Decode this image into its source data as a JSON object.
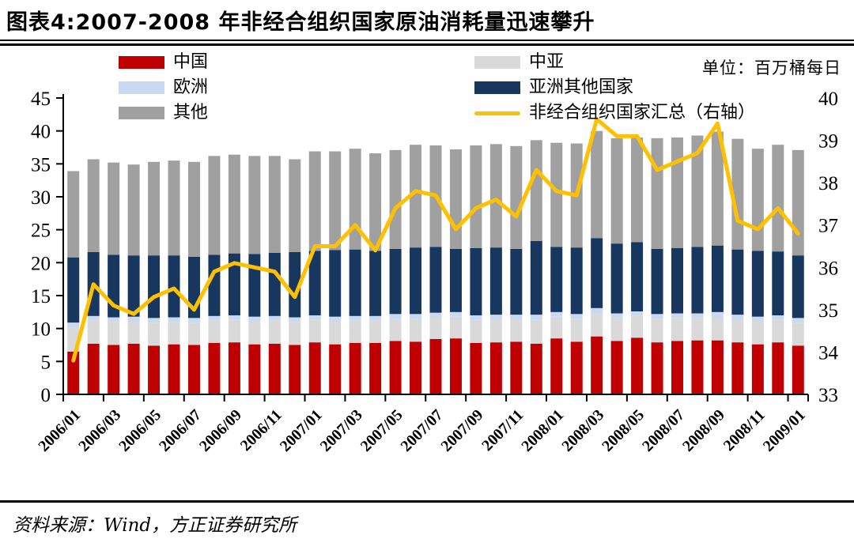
{
  "header": {
    "title": "图表4:2007-2008 年非经合组织国家原油消耗量迅速攀升"
  },
  "unit_label": "单位：百万桶每日",
  "footer": {
    "source": "资料来源：Wind，方正证券研究所"
  },
  "legend": {
    "items": [
      {
        "label": "中国",
        "color": "#C00000",
        "type": "bar"
      },
      {
        "label": "欧洲",
        "color": "#C9DAF0",
        "type": "bar"
      },
      {
        "label": "其他",
        "color": "#A0A0A0",
        "type": "bar"
      },
      {
        "label": "中亚",
        "color": "#D9D9D9",
        "type": "bar"
      },
      {
        "label": "亚洲其他国家",
        "color": "#17375E",
        "type": "bar"
      },
      {
        "label": "非经合组织国家汇总（右轴）",
        "color": "#FFC000",
        "type": "line"
      }
    ]
  },
  "chart_data": {
    "type": "bar",
    "subtype": "stacked-bars-with-line-overlay",
    "categories": [
      "2006/01",
      "2006/02",
      "2006/03",
      "2006/04",
      "2006/05",
      "2006/06",
      "2006/07",
      "2006/08",
      "2006/09",
      "2006/10",
      "2006/11",
      "2006/12",
      "2007/01",
      "2007/02",
      "2007/03",
      "2007/04",
      "2007/05",
      "2007/06",
      "2007/07",
      "2007/08",
      "2007/09",
      "2007/10",
      "2007/11",
      "2007/12",
      "2008/01",
      "2008/02",
      "2008/03",
      "2008/04",
      "2008/05",
      "2008/06",
      "2008/07",
      "2008/08",
      "2008/09",
      "2008/10",
      "2008/11",
      "2008/12",
      "2009/01"
    ],
    "x_tick_labels": [
      "2006/01",
      "2006/03",
      "2006/05",
      "2006/07",
      "2006/09",
      "2006/11",
      "2007/01",
      "2007/03",
      "2007/05",
      "2007/07",
      "2007/09",
      "2007/11",
      "2008/01",
      "2008/03",
      "2008/05",
      "2008/07",
      "2008/09",
      "2008/11",
      "2009/01"
    ],
    "series": [
      {
        "name": "中国",
        "color": "#C00000",
        "values": [
          6.5,
          7.7,
          7.5,
          7.7,
          7.4,
          7.6,
          7.5,
          7.8,
          7.9,
          7.6,
          7.7,
          7.5,
          7.9,
          7.6,
          7.8,
          7.8,
          8.1,
          8.0,
          8.4,
          8.5,
          7.8,
          7.9,
          8.0,
          7.7,
          8.5,
          8.0,
          8.8,
          8.1,
          8.6,
          7.9,
          8.1,
          8.2,
          8.2,
          7.9,
          7.6,
          7.9,
          7.4
        ]
      },
      {
        "name": "中亚",
        "color": "#D9D9D9",
        "values": [
          3.6,
          3.5,
          3.5,
          3.4,
          3.5,
          3.4,
          3.4,
          3.4,
          3.4,
          3.5,
          3.5,
          3.5,
          3.4,
          3.5,
          3.4,
          3.4,
          3.4,
          3.5,
          3.3,
          3.3,
          3.5,
          3.5,
          3.4,
          3.6,
          3.3,
          3.5,
          3.4,
          3.5,
          3.3,
          3.6,
          3.5,
          3.4,
          3.5,
          3.5,
          3.5,
          3.4,
          3.5
        ]
      },
      {
        "name": "欧洲",
        "color": "#C9DAF0",
        "values": [
          0.8,
          0.7,
          0.7,
          0.7,
          0.7,
          0.7,
          0.7,
          0.7,
          0.7,
          0.7,
          0.7,
          0.7,
          0.7,
          0.7,
          0.7,
          0.7,
          0.7,
          0.7,
          0.7,
          0.7,
          0.7,
          0.7,
          0.7,
          0.8,
          0.7,
          0.7,
          0.9,
          0.7,
          0.7,
          0.7,
          0.7,
          0.7,
          0.8,
          0.7,
          0.7,
          0.7,
          0.7
        ]
      },
      {
        "name": "亚洲其他国家",
        "color": "#17375E",
        "values": [
          9.9,
          9.7,
          9.5,
          9.3,
          9.5,
          9.4,
          9.3,
          9.3,
          9.4,
          9.5,
          9.6,
          9.9,
          9.8,
          10.1,
          10.1,
          9.9,
          9.9,
          10.1,
          10.0,
          9.6,
          10.2,
          10.2,
          10.0,
          11.2,
          9.9,
          10.1,
          10.6,
          10.6,
          10.5,
          9.9,
          9.9,
          10.1,
          10.1,
          9.9,
          10.0,
          9.7,
          9.5
        ]
      },
      {
        "name": "其他",
        "color": "#A0A0A0",
        "values": [
          13.1,
          14.1,
          14.0,
          13.8,
          14.2,
          14.4,
          14.4,
          15.0,
          15.0,
          14.9,
          14.7,
          14.1,
          15.1,
          15.0,
          15.3,
          14.8,
          15.0,
          15.6,
          15.4,
          15.1,
          15.6,
          15.7,
          15.6,
          15.3,
          15.8,
          15.8,
          16.3,
          16.0,
          15.9,
          16.8,
          16.8,
          16.9,
          17.3,
          16.8,
          15.5,
          16.2,
          16.0
        ]
      }
    ],
    "line_series": {
      "name": "非经合组织国家汇总（右轴）",
      "color": "#FFC000",
      "axis": "right",
      "values": [
        33.8,
        35.6,
        35.1,
        34.9,
        35.3,
        35.5,
        35.0,
        35.9,
        36.1,
        36.0,
        35.9,
        35.3,
        36.5,
        36.5,
        37.0,
        36.4,
        37.4,
        37.8,
        37.7,
        36.9,
        37.4,
        37.6,
        37.2,
        38.3,
        37.8,
        37.7,
        39.5,
        39.1,
        39.1,
        38.3,
        38.5,
        38.7,
        39.4,
        37.1,
        36.9,
        37.4,
        36.8
      ]
    },
    "left_axis": {
      "min": 0,
      "max": 45,
      "step": 5,
      "ticks": [
        0,
        5,
        10,
        15,
        20,
        25,
        30,
        35,
        40,
        45
      ]
    },
    "right_axis": {
      "min": 33,
      "max": 40,
      "step": 1,
      "ticks": [
        33,
        34,
        35,
        36,
        37,
        38,
        39,
        40
      ]
    },
    "grid": false,
    "legend_position": "top-inside"
  }
}
